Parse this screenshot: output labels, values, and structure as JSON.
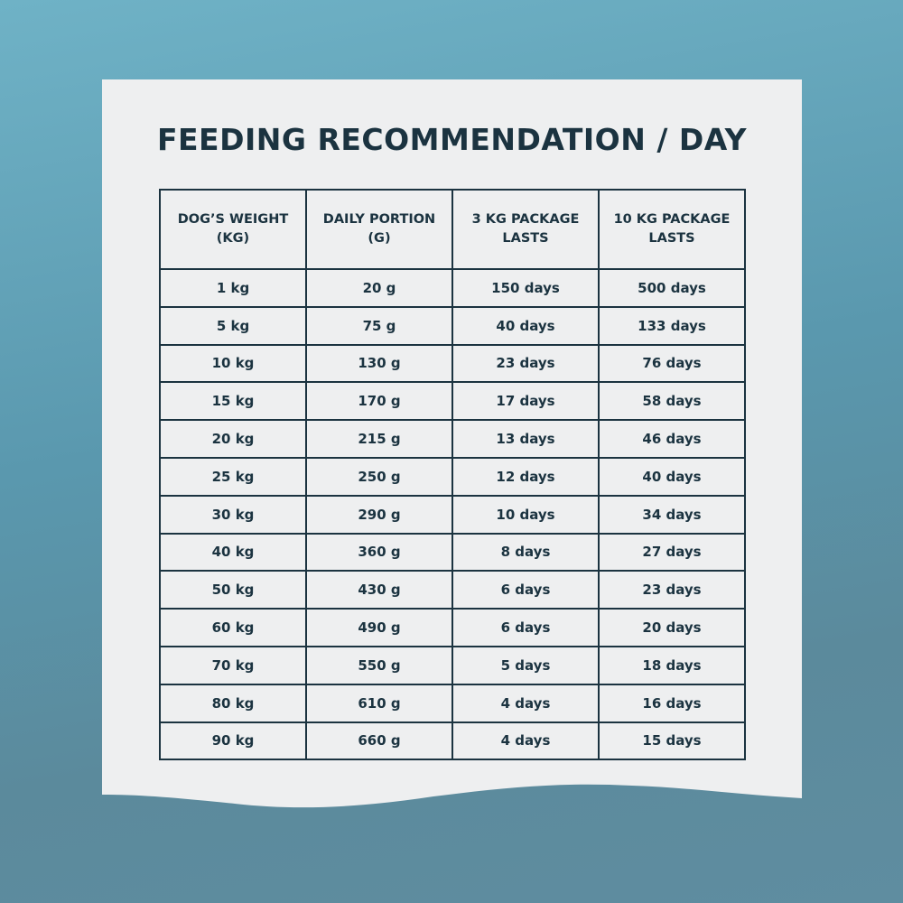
{
  "header": {
    "title": "FEEDING RECOMMENDATION / DAY"
  },
  "table": {
    "columns": [
      [
        "DOG’S WEIGHT",
        "(KG)"
      ],
      [
        "DAILY PORTION",
        "(G)"
      ],
      [
        "3 KG PACKAGE",
        "LASTS"
      ],
      [
        "10 KG PACKAGE",
        "LASTS"
      ]
    ],
    "rows": [
      [
        "1 kg",
        "20 g",
        "150 days",
        "500 days"
      ],
      [
        "5 kg",
        "75 g",
        "40 days",
        "133 days"
      ],
      [
        "10 kg",
        "130 g",
        "23 days",
        "76 days"
      ],
      [
        "15 kg",
        "170 g",
        "17 days",
        "58 days"
      ],
      [
        "20 kg",
        "215 g",
        "13 days",
        "46 days"
      ],
      [
        "25 kg",
        "250 g",
        "12 days",
        "40 days"
      ],
      [
        "30 kg",
        "290 g",
        "10 days",
        "34 days"
      ],
      [
        "40 kg",
        "360 g",
        "8 days",
        "27 days"
      ],
      [
        "50 kg",
        "430 g",
        "6 days",
        "23 days"
      ],
      [
        "60 kg",
        "490 g",
        "6 days",
        "20 days"
      ],
      [
        "70 kg",
        "550 g",
        "5 days",
        "18 days"
      ],
      [
        "80 kg",
        "610 g",
        "4 days",
        "16 days"
      ],
      [
        "90 kg",
        "660 g",
        "4 days",
        "15 days"
      ]
    ]
  }
}
